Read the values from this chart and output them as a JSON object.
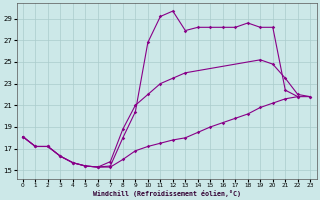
{
  "background_color": "#cce8e8",
  "grid_color": "#aacccc",
  "line_color": "#880088",
  "xlim": [
    -0.5,
    23.5
  ],
  "ylim": [
    14.2,
    30.4
  ],
  "xticks": [
    0,
    1,
    2,
    3,
    4,
    5,
    6,
    7,
    8,
    9,
    10,
    11,
    12,
    13,
    14,
    15,
    16,
    17,
    18,
    19,
    20,
    21,
    22,
    23
  ],
  "yticks": [
    15,
    17,
    19,
    21,
    23,
    25,
    27,
    29
  ],
  "xlabel": "Windchill (Refroidissement éolien,°C)",
  "line1_x": [
    0,
    1,
    2,
    3,
    4,
    5,
    6,
    7,
    8,
    9,
    10,
    11,
    12,
    13,
    14,
    15,
    16,
    17,
    18,
    19,
    20,
    21,
    22
  ],
  "line1_y": [
    18.1,
    17.2,
    17.2,
    16.3,
    15.7,
    15.4,
    15.3,
    15.4,
    18.0,
    20.4,
    26.8,
    29.2,
    29.7,
    27.9,
    28.2,
    28.2,
    28.2,
    28.2,
    28.6,
    28.2,
    28.2,
    22.4,
    21.8
  ],
  "line2_x": [
    0,
    1,
    2,
    3,
    4,
    5,
    6,
    7,
    8,
    9,
    10,
    11,
    12,
    13,
    19,
    20,
    21,
    22,
    23
  ],
  "line2_y": [
    18.1,
    17.2,
    17.2,
    16.3,
    15.7,
    15.4,
    15.3,
    15.8,
    18.8,
    21.0,
    22.0,
    23.0,
    23.5,
    24.0,
    25.2,
    24.8,
    23.5,
    22.0,
    21.8
  ],
  "line3_x": [
    0,
    1,
    2,
    3,
    4,
    5,
    6,
    7,
    8,
    9,
    10,
    11,
    12,
    13,
    14,
    15,
    16,
    17,
    18,
    19,
    20,
    21,
    22,
    23
  ],
  "line3_y": [
    18.1,
    17.2,
    17.2,
    16.3,
    15.7,
    15.4,
    15.3,
    15.3,
    16.0,
    16.8,
    17.2,
    17.5,
    17.8,
    18.0,
    18.5,
    19.0,
    19.4,
    19.8,
    20.2,
    20.8,
    21.2,
    21.6,
    21.8,
    21.8
  ]
}
